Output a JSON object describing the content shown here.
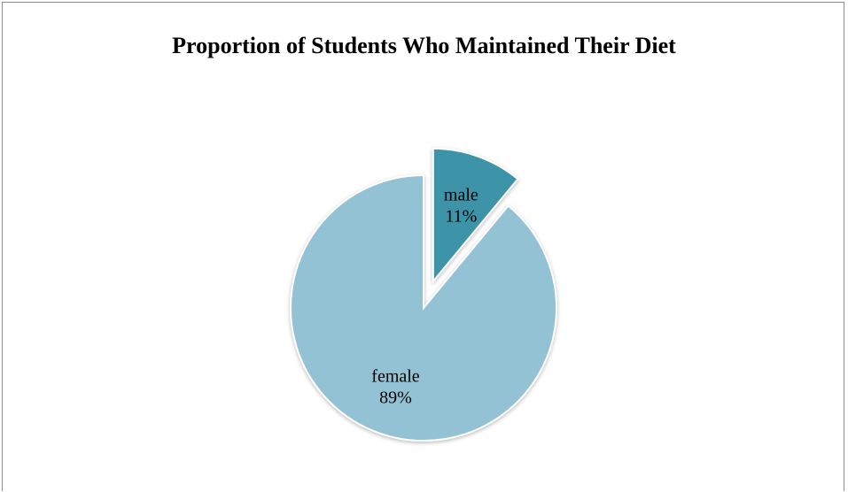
{
  "chart_data": {
    "type": "pie",
    "title": "Proportion of Students Who Maintained Their Diet",
    "slices": [
      {
        "label": "male",
        "value": 11,
        "value_label": "11%",
        "color": "#3c93a8",
        "exploded": true
      },
      {
        "label": "female",
        "value": 89,
        "value_label": "89%",
        "color": "#93c2d4",
        "exploded": false
      }
    ],
    "legend": "none"
  }
}
